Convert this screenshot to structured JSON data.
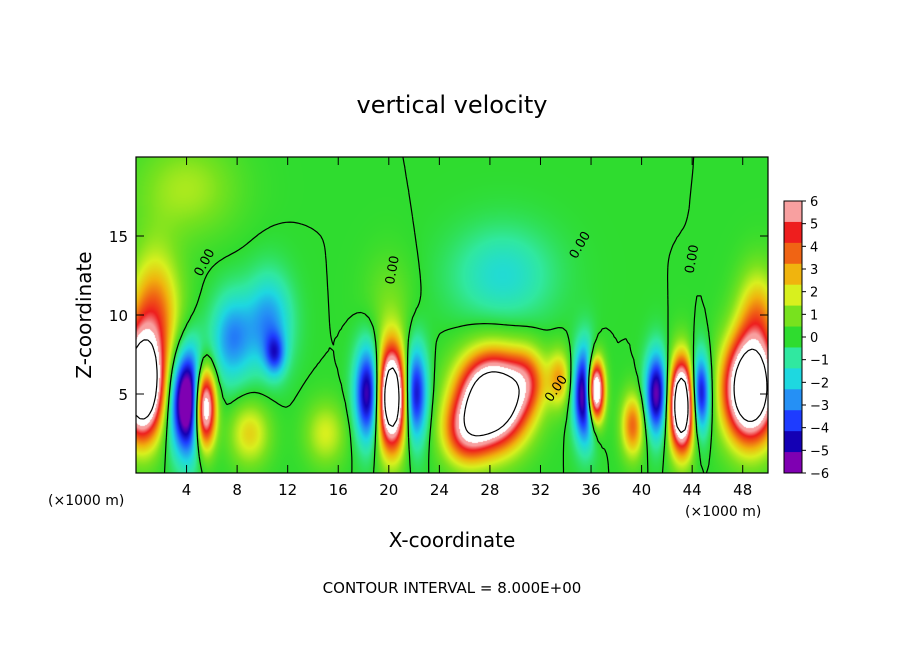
{
  "chart_data": {
    "type": "heatmap",
    "title": "vertical velocity",
    "xlabel": "X-coordinate",
    "ylabel": "Z-coordinate",
    "x_unit": "(×1000 m)",
    "x_unit_right": "(×1000 m)",
    "xlim": [
      0,
      50
    ],
    "ylim": [
      0,
      20
    ],
    "x_ticks": [
      4,
      8,
      12,
      16,
      20,
      24,
      28,
      32,
      36,
      40,
      44,
      48
    ],
    "y_ticks": [
      5,
      10,
      15
    ],
    "colorbar": {
      "ticks": [
        6,
        5,
        4,
        3,
        2,
        1,
        0,
        -1,
        -2,
        -3,
        -4,
        -5,
        -6
      ],
      "tick_labels": [
        "6",
        "5",
        "4",
        "3",
        "2",
        "1",
        "0",
        "−1",
        "−2",
        "−3",
        "−4",
        "−5",
        "−6"
      ],
      "range": [
        -6,
        6
      ]
    },
    "contour_labels": [
      "0.00",
      "0.00",
      "0.00",
      "0.00",
      "0.00"
    ],
    "footer": "CONTOUR INTERVAL = 8.000E+00",
    "features": [
      {
        "x": 0.5,
        "z": 5.5,
        "w": 12,
        "sx": 1.6,
        "sz": 3.2
      },
      {
        "x": 1.5,
        "z": 10,
        "w": 4,
        "sx": 2.0,
        "sz": 4
      },
      {
        "x": 4.3,
        "z": 4.5,
        "w": -9,
        "sx": 1.5,
        "sz": 3.2
      },
      {
        "x": 5.4,
        "z": 4.2,
        "w": 12,
        "sx": 0.9,
        "sz": 2.6
      },
      {
        "x": 7.6,
        "z": 8.5,
        "w": -3,
        "sx": 1.6,
        "sz": 2.8
      },
      {
        "x": 10.5,
        "z": 9.5,
        "w": -3,
        "sx": 1.8,
        "sz": 3
      },
      {
        "x": 11,
        "z": 7.5,
        "w": -3,
        "sx": 0.8,
        "sz": 1.3
      },
      {
        "x": 9,
        "z": 2.5,
        "w": 2.5,
        "sx": 1.6,
        "sz": 2
      },
      {
        "x": 15,
        "z": 2.5,
        "w": 2,
        "sx": 1.6,
        "sz": 2
      },
      {
        "x": 18.5,
        "z": 5,
        "w": -7,
        "sx": 1.1,
        "sz": 3
      },
      {
        "x": 20.2,
        "z": 4.8,
        "w": 12,
        "sx": 1.3,
        "sz": 3.2
      },
      {
        "x": 22,
        "z": 5,
        "w": -6,
        "sx": 1.0,
        "sz": 3
      },
      {
        "x": 28.2,
        "z": 4.6,
        "w": 12,
        "sx": 2.6,
        "sz": 2.8
      },
      {
        "x": 26,
        "z": 2.5,
        "w": 4,
        "sx": 1.8,
        "sz": 2
      },
      {
        "x": 31,
        "z": 6,
        "w": 3,
        "sx": 1.5,
        "sz": 2
      },
      {
        "x": 33.5,
        "z": 6,
        "w": 3,
        "sx": 0.9,
        "sz": 1.8
      },
      {
        "x": 35.6,
        "z": 5,
        "w": -8,
        "sx": 0.9,
        "sz": 2.8
      },
      {
        "x": 36.3,
        "z": 5.2,
        "w": 12,
        "sx": 0.7,
        "sz": 2
      },
      {
        "x": 39.3,
        "z": 3,
        "w": 4,
        "sx": 0.9,
        "sz": 2
      },
      {
        "x": 41.2,
        "z": 5,
        "w": -6,
        "sx": 0.9,
        "sz": 2.6
      },
      {
        "x": 43.2,
        "z": 4.3,
        "w": 12,
        "sx": 1.0,
        "sz": 2.8
      },
      {
        "x": 44.6,
        "z": 5,
        "w": -6,
        "sx": 0.8,
        "sz": 2.5
      },
      {
        "x": 48.6,
        "z": 5.3,
        "w": 12,
        "sx": 2.0,
        "sz": 3.2
      },
      {
        "x": 49.2,
        "z": 10,
        "w": 3,
        "sx": 1.6,
        "sz": 3
      },
      {
        "x": 29,
        "z": 12.5,
        "w": -1.8,
        "sx": 4,
        "sz": 3
      },
      {
        "x": 20,
        "z": 11,
        "w": 0.8,
        "sx": 2,
        "sz": 3
      },
      {
        "x": 4,
        "z": 18,
        "w": 1.5,
        "sx": 4,
        "sz": 3
      }
    ]
  }
}
